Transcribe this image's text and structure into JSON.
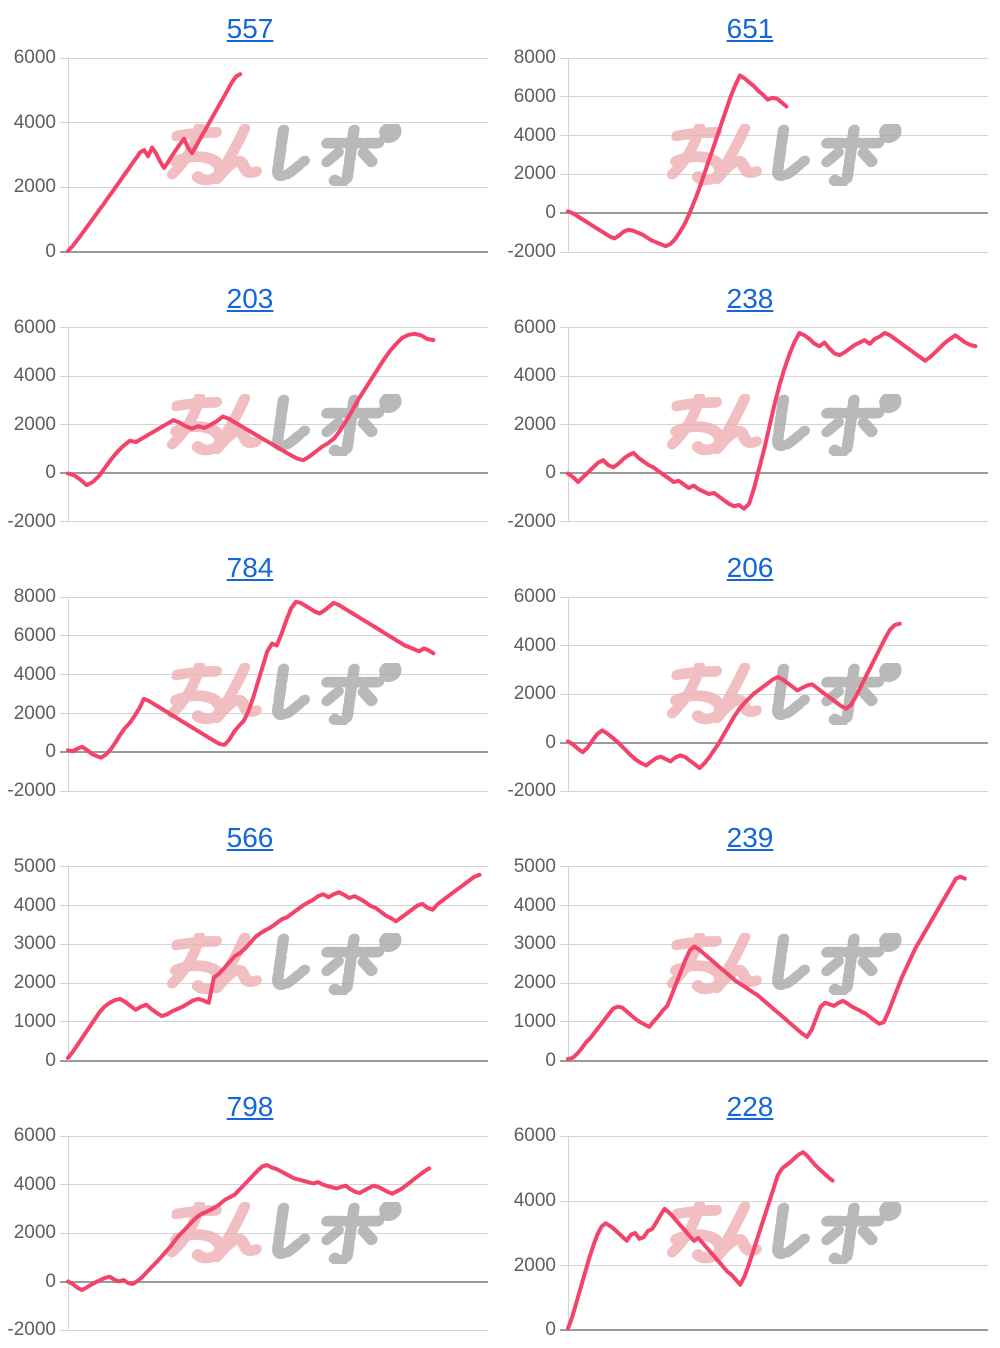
{
  "watermark": {
    "text": "みんレポ",
    "pink_text": "みん",
    "gray_text": "レポ",
    "pink_color": "#eeb0b4",
    "gray_color": "#a8a8a8"
  },
  "colors": {
    "line": "#f4436a",
    "title_link": "#1766d9",
    "axis_label": "#5e5e5e",
    "gridline": "#d4d4d4",
    "zero_line": "#9a9a9a",
    "background": "#ffffff"
  },
  "chart_data": [
    {
      "type": "line",
      "title": "557",
      "xlabel": "",
      "ylabel": "",
      "grid": true,
      "legend": "none",
      "ylim": [
        0,
        6000
      ],
      "yticks": [
        6000,
        4000,
        2000,
        0
      ],
      "x_span": 0.41,
      "values": [
        30,
        160,
        320,
        480,
        650,
        820,
        990,
        1160,
        1330,
        1500,
        1680,
        1850,
        2030,
        2200,
        2380,
        2550,
        2730,
        2900,
        3080,
        3150,
        2960,
        3230,
        3050,
        2800,
        2600,
        2780,
        2980,
        3160,
        3340,
        3500,
        3220,
        3060,
        3280,
        3500,
        3720,
        3940,
        4160,
        4380,
        4600,
        4820,
        5040,
        5260,
        5430,
        5500
      ]
    },
    {
      "type": "line",
      "title": "651",
      "xlabel": "",
      "ylabel": "",
      "grid": true,
      "legend": "none",
      "ylim": [
        -2000,
        8000
      ],
      "yticks": [
        8000,
        6000,
        4000,
        2000,
        0,
        -2000
      ],
      "x_span": 0.52,
      "values": [
        100,
        0,
        -150,
        -300,
        -450,
        -600,
        -750,
        -900,
        -1050,
        -1200,
        -1300,
        -1150,
        -950,
        -850,
        -900,
        -1000,
        -1100,
        -1250,
        -1400,
        -1500,
        -1600,
        -1700,
        -1600,
        -1350,
        -1000,
        -600,
        -100,
        500,
        1100,
        1800,
        2500,
        3200,
        3900,
        4600,
        5300,
        6000,
        6600,
        7100,
        6950,
        6750,
        6550,
        6300,
        6100,
        5850,
        5950,
        5900,
        5700,
        5500
      ]
    },
    {
      "type": "line",
      "title": "203",
      "xlabel": "",
      "ylabel": "",
      "grid": true,
      "legend": "none",
      "ylim": [
        -2000,
        6000
      ],
      "yticks": [
        6000,
        4000,
        2000,
        0,
        -2000
      ],
      "x_span": 0.87,
      "values": [
        0,
        -80,
        -250,
        -480,
        -350,
        -100,
        250,
        600,
        900,
        1150,
        1350,
        1300,
        1450,
        1600,
        1750,
        1900,
        2050,
        2200,
        2100,
        1950,
        1850,
        1950,
        1880,
        2000,
        2150,
        2350,
        2250,
        2100,
        1950,
        1800,
        1650,
        1500,
        1350,
        1200,
        1050,
        900,
        750,
        620,
        550,
        700,
        900,
        1100,
        1250,
        1450,
        1800,
        2200,
        2650,
        3100,
        3500,
        3900,
        4300,
        4700,
        5050,
        5350,
        5600,
        5720,
        5760,
        5700,
        5550,
        5500
      ]
    },
    {
      "type": "line",
      "title": "238",
      "xlabel": "",
      "ylabel": "",
      "grid": true,
      "legend": "none",
      "ylim": [
        -2000,
        6000
      ],
      "yticks": [
        6000,
        4000,
        2000,
        0,
        -2000
      ],
      "x_span": 0.97,
      "values": [
        0,
        -150,
        -350,
        -150,
        50,
        250,
        450,
        550,
        350,
        250,
        400,
        600,
        750,
        850,
        650,
        500,
        350,
        250,
        100,
        -50,
        -200,
        -350,
        -300,
        -450,
        -600,
        -500,
        -650,
        -750,
        -850,
        -800,
        -950,
        -1100,
        -1250,
        -1350,
        -1300,
        -1450,
        -1250,
        -600,
        200,
        1000,
        1900,
        2800,
        3600,
        4300,
        4900,
        5400,
        5800,
        5700,
        5550,
        5350,
        5250,
        5400,
        5150,
        4950,
        4880,
        5000,
        5150,
        5300,
        5400,
        5500,
        5350,
        5550,
        5650,
        5800,
        5700,
        5550,
        5400,
        5250,
        5100,
        4950,
        4800,
        4650,
        4800,
        5000,
        5200,
        5400,
        5550,
        5700,
        5550,
        5400,
        5300,
        5250
      ]
    },
    {
      "type": "line",
      "title": "784",
      "xlabel": "",
      "ylabel": "",
      "grid": true,
      "legend": "none",
      "ylim": [
        -2000,
        8000
      ],
      "yticks": [
        8000,
        6000,
        4000,
        2000,
        0,
        -2000
      ],
      "x_span": 0.87,
      "values": [
        100,
        50,
        180,
        280,
        120,
        -80,
        -200,
        -280,
        -120,
        150,
        500,
        900,
        1250,
        1500,
        1850,
        2250,
        2750,
        2650,
        2500,
        2350,
        2200,
        2050,
        1900,
        1750,
        1600,
        1450,
        1300,
        1150,
        1000,
        850,
        700,
        550,
        420,
        380,
        650,
        1050,
        1350,
        1600,
        2100,
        2800,
        3600,
        4400,
        5200,
        5600,
        5500,
        6100,
        6800,
        7400,
        7750,
        7700,
        7550,
        7400,
        7250,
        7150,
        7300,
        7500,
        7700,
        7600,
        7450,
        7300,
        7150,
        7000,
        6850,
        6700,
        6550,
        6400,
        6250,
        6100,
        5950,
        5800,
        5650,
        5500,
        5400,
        5300,
        5200,
        5350,
        5250,
        5100
      ]
    },
    {
      "type": "line",
      "title": "206",
      "xlabel": "",
      "ylabel": "",
      "grid": true,
      "legend": "none",
      "ylim": [
        -2000,
        6000
      ],
      "yticks": [
        6000,
        4000,
        2000,
        0,
        -2000
      ],
      "x_span": 0.79,
      "values": [
        50,
        -80,
        -250,
        -400,
        -220,
        80,
        350,
        500,
        380,
        220,
        50,
        -150,
        -350,
        -550,
        -720,
        -850,
        -950,
        -800,
        -650,
        -580,
        -680,
        -780,
        -620,
        -530,
        -600,
        -750,
        -900,
        -1050,
        -850,
        -600,
        -300,
        0,
        350,
        700,
        1050,
        1350,
        1600,
        1800,
        2000,
        2150,
        2300,
        2450,
        2600,
        2700,
        2600,
        2450,
        2300,
        2150,
        2250,
        2350,
        2400,
        2250,
        2100,
        1950,
        1800,
        1650,
        1500,
        1400,
        1550,
        1900,
        2300,
        2700,
        3100,
        3500,
        3900,
        4300,
        4650,
        4850,
        4900
      ]
    },
    {
      "type": "line",
      "title": "566",
      "xlabel": "",
      "ylabel": "",
      "grid": true,
      "legend": "none",
      "ylim": [
        0,
        5000
      ],
      "yticks": [
        5000,
        4000,
        3000,
        2000,
        1000,
        0
      ],
      "x_span": 0.98,
      "values": [
        80,
        250,
        450,
        650,
        850,
        1050,
        1250,
        1400,
        1500,
        1570,
        1600,
        1520,
        1420,
        1320,
        1400,
        1450,
        1340,
        1240,
        1160,
        1200,
        1280,
        1340,
        1400,
        1480,
        1560,
        1600,
        1560,
        1500,
        2150,
        2250,
        2400,
        2550,
        2700,
        2780,
        2900,
        3050,
        3200,
        3300,
        3380,
        3450,
        3550,
        3650,
        3700,
        3800,
        3900,
        4000,
        4080,
        4150,
        4250,
        4300,
        4220,
        4300,
        4350,
        4280,
        4200,
        4250,
        4180,
        4100,
        4000,
        3950,
        3850,
        3750,
        3680,
        3600,
        3700,
        3800,
        3900,
        4000,
        4050,
        3950,
        3900,
        4050,
        4150,
        4250,
        4350,
        4450,
        4550,
        4650,
        4750,
        4800
      ]
    },
    {
      "type": "line",
      "title": "239",
      "xlabel": "",
      "ylabel": "",
      "grid": true,
      "legend": "none",
      "ylim": [
        0,
        5000
      ],
      "yticks": [
        5000,
        4000,
        3000,
        2000,
        1000,
        0
      ],
      "x_span": 0.945,
      "values": [
        50,
        80,
        180,
        320,
        480,
        600,
        750,
        900,
        1050,
        1200,
        1350,
        1400,
        1380,
        1280,
        1180,
        1080,
        1000,
        940,
        880,
        1020,
        1150,
        1300,
        1420,
        1700,
        2000,
        2300,
        2600,
        2850,
        2950,
        2880,
        2780,
        2680,
        2580,
        2480,
        2380,
        2280,
        2180,
        2080,
        2000,
        1930,
        1850,
        1770,
        1700,
        1600,
        1500,
        1400,
        1300,
        1200,
        1100,
        1000,
        900,
        800,
        700,
        620,
        800,
        1100,
        1400,
        1500,
        1460,
        1420,
        1500,
        1550,
        1480,
        1400,
        1340,
        1280,
        1220,
        1130,
        1040,
        960,
        1000,
        1250,
        1550,
        1850,
        2150,
        2400,
        2650,
        2900,
        3100,
        3300,
        3500,
        3700,
        3900,
        4100,
        4300,
        4500,
        4700,
        4750,
        4700
      ]
    },
    {
      "type": "line",
      "title": "798",
      "xlabel": "",
      "ylabel": "",
      "grid": true,
      "legend": "none",
      "ylim": [
        -2000,
        6000
      ],
      "yticks": [
        6000,
        4000,
        2000,
        0,
        -2000
      ],
      "x_span": 0.86,
      "values": [
        0,
        -100,
        -250,
        -350,
        -250,
        -130,
        -30,
        60,
        150,
        200,
        80,
        0,
        60,
        -60,
        -100,
        20,
        180,
        380,
        580,
        780,
        980,
        1200,
        1420,
        1660,
        1900,
        2100,
        2300,
        2500,
        2680,
        2800,
        2880,
        2980,
        3080,
        3230,
        3380,
        3480,
        3580,
        3780,
        3980,
        4180,
        4380,
        4580,
        4750,
        4800,
        4700,
        4640,
        4540,
        4440,
        4340,
        4240,
        4200,
        4140,
        4090,
        4040,
        4100,
        4000,
        3940,
        3890,
        3840,
        3900,
        3950,
        3800,
        3700,
        3650,
        3760,
        3860,
        3950,
        3900,
        3800,
        3700,
        3620,
        3720,
        3820,
        3960,
        4110,
        4260,
        4400,
        4550,
        4670
      ]
    },
    {
      "type": "line",
      "title": "228",
      "xlabel": "",
      "ylabel": "",
      "grid": true,
      "legend": "none",
      "ylim": [
        0,
        6000
      ],
      "yticks": [
        6000,
        4000,
        2000,
        0
      ],
      "x_span": 0.63,
      "values": [
        50,
        400,
        850,
        1300,
        1750,
        2200,
        2600,
        2950,
        3200,
        3300,
        3220,
        3120,
        3000,
        2880,
        2760,
        2950,
        3000,
        2820,
        2870,
        3060,
        3120,
        3320,
        3550,
        3750,
        3640,
        3500,
        3350,
        3200,
        3060,
        2900,
        2760,
        2850,
        2700,
        2550,
        2400,
        2250,
        2100,
        1950,
        1800,
        1700,
        1550,
        1400,
        1650,
        2000,
        2400,
        2800,
        3200,
        3600,
        4000,
        4400,
        4800,
        5000,
        5100,
        5200,
        5320,
        5430,
        5500,
        5380,
        5230,
        5080,
        4960,
        4840,
        4720,
        4620
      ]
    }
  ]
}
